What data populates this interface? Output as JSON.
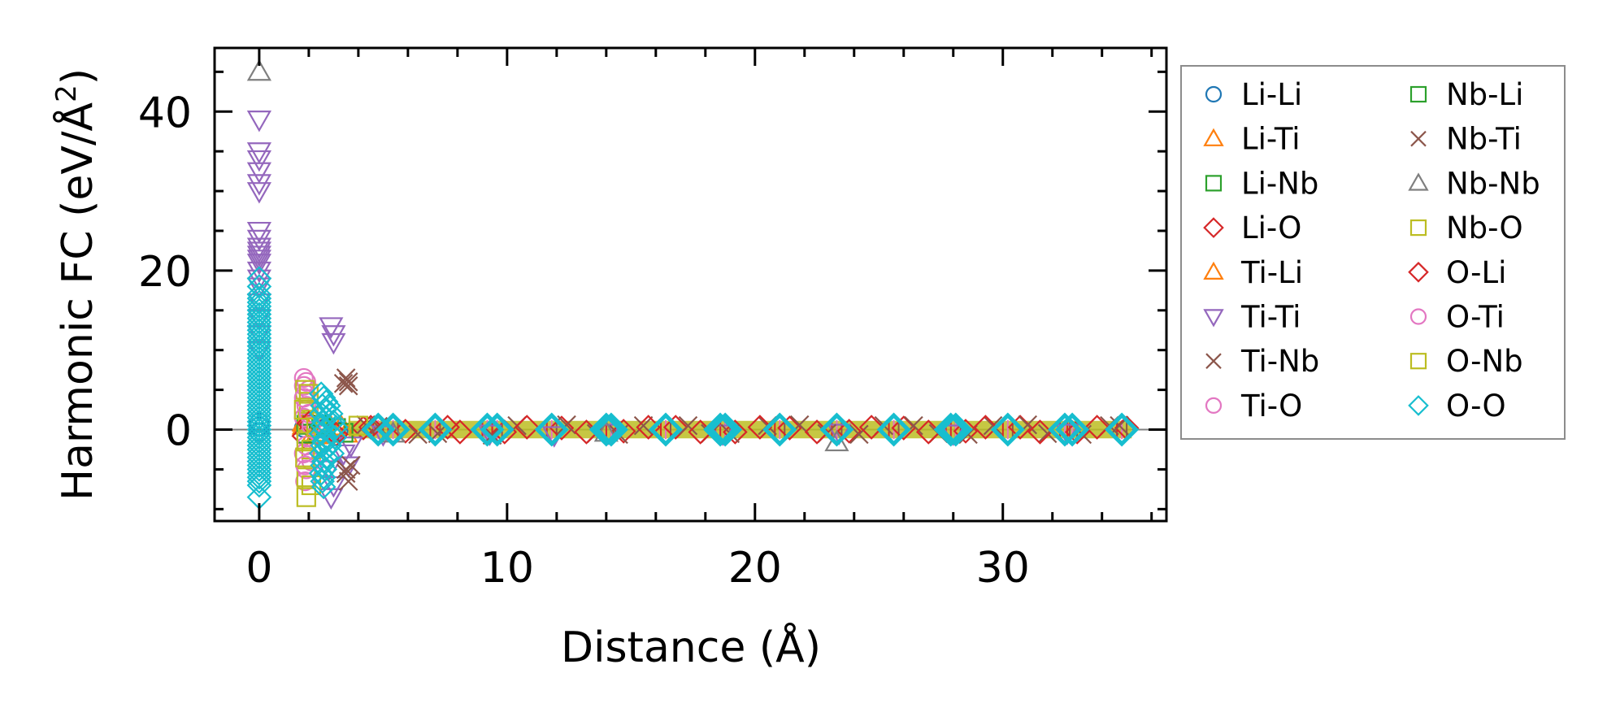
{
  "chart_data": {
    "type": "scatter",
    "xlabel": "Distance (Å)",
    "ylabel_main": "Harmonic FC (eV/Å",
    "ylabel_sup": "2",
    "ylabel_close": ")",
    "xlim": [
      -1.8,
      36.6
    ],
    "ylim": [
      -11.5,
      48
    ],
    "x_ticks": [
      0,
      10,
      20,
      30
    ],
    "x_tick_labels": [
      "0",
      "10",
      "20",
      "30"
    ],
    "x_minor_step": 2,
    "y_ticks": [
      0,
      20,
      40
    ],
    "y_tick_labels": [
      "0",
      "20",
      "40"
    ],
    "y_minor_step": 5,
    "zero_line": 0,
    "grid": false,
    "legend_placement": "outside-right",
    "legend_columns": 2,
    "shell_distances": [
      4.8,
      5.4,
      7.1,
      9.2,
      9.6,
      11.8,
      14.0,
      14.2,
      16.4,
      18.6,
      18.8,
      21.0,
      23.3,
      25.6,
      27.9,
      28.1,
      30.2,
      32.5,
      32.8,
      34.8
    ],
    "series": [
      {
        "name": "Li-Li",
        "marker": "circle",
        "color": "#1f77b4",
        "points": [
          [
            0,
            0.4
          ],
          [
            0,
            0.9
          ],
          [
            0,
            -0.3
          ],
          [
            1.8,
            0.2
          ],
          [
            2.6,
            0.1
          ],
          [
            3.2,
            -0.2
          ]
        ]
      },
      {
        "name": "Li-Ti",
        "marker": "triangle-up",
        "color": "#ff7f0e",
        "points": [
          [
            1.8,
            0.5
          ],
          [
            2.2,
            -0.4
          ],
          [
            2.9,
            0.3
          ],
          [
            3.5,
            -0.5
          ]
        ]
      },
      {
        "name": "Li-Nb",
        "marker": "square",
        "color": "#2ca02c",
        "points": [
          [
            1.9,
            0.6
          ],
          [
            2.4,
            -0.6
          ],
          [
            3.1,
            0.2
          ]
        ]
      },
      {
        "name": "Li-O",
        "marker": "diamond",
        "color": "#d62728",
        "points": [
          [
            1.8,
            -0.8
          ],
          [
            2.1,
            0.7
          ],
          [
            3.0,
            -0.3
          ],
          [
            4.2,
            0.2
          ],
          [
            5.9,
            -0.2
          ],
          [
            7.6,
            0.3
          ],
          [
            9.9,
            -0.3
          ],
          [
            12.2,
            0.2
          ],
          [
            14.7,
            -0.2
          ],
          [
            16.8,
            0.3
          ],
          [
            19.2,
            -0.3
          ],
          [
            21.4,
            0.2
          ],
          [
            23.8,
            -0.2
          ],
          [
            26.0,
            0.2
          ],
          [
            28.5,
            -0.2
          ],
          [
            30.7,
            0.3
          ],
          [
            33.0,
            -0.3
          ],
          [
            35.0,
            0.2
          ]
        ]
      },
      {
        "name": "Ti-Li",
        "marker": "triangle-up",
        "color": "#ff7f0e",
        "points": [
          [
            1.8,
            0.9
          ],
          [
            2.3,
            -0.7
          ],
          [
            3.3,
            0.4
          ]
        ]
      },
      {
        "name": "Ti-Ti",
        "marker": "triangle-down",
        "color": "#9467bd",
        "points": [
          [
            0,
            39
          ],
          [
            0,
            35
          ],
          [
            0,
            34
          ],
          [
            0,
            32.5
          ],
          [
            0,
            31
          ],
          [
            0,
            30
          ],
          [
            0,
            25
          ],
          [
            0,
            24
          ],
          [
            0,
            23
          ],
          [
            0,
            22.5
          ],
          [
            0,
            22
          ],
          [
            0,
            21.5
          ],
          [
            0,
            21
          ],
          [
            0,
            20
          ],
          [
            0,
            19
          ],
          [
            0,
            18
          ],
          [
            0,
            16
          ],
          [
            0,
            14
          ],
          [
            0,
            12
          ],
          [
            0,
            10
          ],
          [
            2.9,
            13
          ],
          [
            3.0,
            12
          ],
          [
            3.0,
            11
          ],
          [
            2.6,
            -2
          ],
          [
            2.8,
            -5
          ],
          [
            3.0,
            -7
          ],
          [
            2.9,
            -8.5
          ],
          [
            3.4,
            -3
          ],
          [
            3.6,
            -4.5
          ],
          [
            3.7,
            -2
          ],
          [
            5.0,
            -0.6
          ],
          [
            9.3,
            -0.5
          ],
          [
            11.9,
            -0.7
          ],
          [
            14.1,
            -0.4
          ],
          [
            18.7,
            -0.5
          ],
          [
            23.4,
            -0.4
          ],
          [
            28.0,
            -0.5
          ],
          [
            32.6,
            -0.4
          ]
        ]
      },
      {
        "name": "Ti-Nb",
        "marker": "x",
        "color": "#8c564b",
        "points": [
          [
            3.5,
            6.5
          ],
          [
            3.6,
            6.0
          ],
          [
            3.6,
            5.5
          ],
          [
            3.5,
            -5.5
          ],
          [
            3.6,
            -6.5
          ],
          [
            3.7,
            -4.5
          ],
          [
            4.3,
            0.6
          ],
          [
            6.4,
            -0.6
          ],
          [
            9.4,
            -0.7
          ],
          [
            12.4,
            0.6
          ],
          [
            14.5,
            -0.6
          ],
          [
            17.3,
            0.5
          ],
          [
            19.0,
            -0.5
          ],
          [
            21.8,
            0.6
          ],
          [
            24.2,
            -0.6
          ],
          [
            26.4,
            0.5
          ],
          [
            28.6,
            -0.6
          ],
          [
            31.0,
            0.6
          ],
          [
            33.2,
            -0.6
          ],
          [
            34.7,
            0.5
          ]
        ]
      },
      {
        "name": "Ti-O",
        "marker": "circle",
        "color": "#e377c2",
        "points": [
          [
            1.8,
            6.5
          ],
          [
            1.9,
            6.0
          ],
          [
            1.8,
            5.5
          ],
          [
            1.85,
            4.5
          ],
          [
            1.9,
            3.0
          ],
          [
            1.8,
            1.5
          ],
          [
            1.9,
            -1.0
          ],
          [
            1.8,
            -3.0
          ],
          [
            1.9,
            -5.0
          ],
          [
            1.85,
            -6.5
          ],
          [
            2.0,
            5.0
          ],
          [
            2.1,
            -4.0
          ]
        ]
      },
      {
        "name": "Nb-Li",
        "marker": "square",
        "color": "#2ca02c",
        "points": [
          [
            1.9,
            -0.5
          ],
          [
            2.5,
            0.6
          ],
          [
            3.4,
            -0.4
          ]
        ]
      },
      {
        "name": "Nb-Ti",
        "marker": "x",
        "color": "#8c564b",
        "points": [
          [
            3.4,
            5.8
          ],
          [
            3.5,
            -5.0
          ],
          [
            4.8,
            0.4
          ],
          [
            7.2,
            -0.5
          ],
          [
            10.4,
            0.5
          ],
          [
            13.6,
            -0.5
          ],
          [
            15.5,
            0.5
          ],
          [
            18.2,
            -0.5
          ],
          [
            20.5,
            0.5
          ],
          [
            22.9,
            -0.5
          ],
          [
            25.2,
            0.5
          ],
          [
            27.4,
            -0.5
          ],
          [
            29.6,
            0.5
          ],
          [
            31.8,
            -0.5
          ],
          [
            34.3,
            0.5
          ]
        ]
      },
      {
        "name": "Nb-Nb",
        "marker": "triangle-up",
        "color": "#7f7f7f",
        "points": [
          [
            0,
            45
          ],
          [
            23.3,
            -1.6
          ],
          [
            14.0,
            -0.4
          ],
          [
            5.4,
            -0.5
          ]
        ]
      },
      {
        "name": "Nb-O",
        "marker": "square",
        "color": "#bcbd22",
        "points": [
          [
            1.9,
            -8.5
          ],
          [
            1.85,
            5.0
          ],
          [
            1.9,
            -6.0
          ],
          [
            2.0,
            3.5
          ],
          [
            2.1,
            -2.5
          ],
          [
            1.95,
            1.0
          ]
        ]
      },
      {
        "name": "O-Li",
        "marker": "diamond",
        "color": "#d62728",
        "points": [
          [
            2.0,
            0.8
          ],
          [
            3.1,
            -0.6
          ],
          [
            4.5,
            0.3
          ],
          [
            8.1,
            -0.3
          ],
          [
            10.8,
            0.3
          ],
          [
            13.2,
            -0.3
          ],
          [
            15.7,
            0.3
          ],
          [
            17.8,
            -0.3
          ],
          [
            20.2,
            0.3
          ],
          [
            22.5,
            -0.3
          ],
          [
            24.7,
            0.3
          ],
          [
            27.0,
            -0.3
          ],
          [
            29.3,
            0.3
          ],
          [
            31.5,
            -0.3
          ],
          [
            33.8,
            0.3
          ]
        ]
      },
      {
        "name": "O-Ti",
        "marker": "circle",
        "color": "#e377c2",
        "points": [
          [
            1.8,
            4.0
          ],
          [
            1.9,
            -2.0
          ],
          [
            2.0,
            2.0
          ],
          [
            1.85,
            -4.5
          ],
          [
            2.1,
            0.5
          ]
        ]
      },
      {
        "name": "O-Nb",
        "marker": "square",
        "color": "#bcbd22",
        "points": [
          [
            1.8,
            2.5
          ],
          [
            1.9,
            -1.5
          ],
          [
            2.0,
            4.5
          ],
          [
            1.85,
            -3.5
          ],
          [
            2.1,
            -7.0
          ],
          [
            2.3,
            0.3
          ],
          [
            4.0,
            0.5
          ]
        ]
      },
      {
        "name": "O-O",
        "marker": "diamond",
        "color": "#17becf",
        "points": [
          [
            0,
            19
          ],
          [
            0,
            18
          ],
          [
            0,
            17
          ],
          [
            0,
            16.5
          ],
          [
            0,
            16
          ],
          [
            0,
            15.5
          ],
          [
            0,
            15
          ],
          [
            0,
            14.5
          ],
          [
            0,
            14
          ],
          [
            0,
            13.5
          ],
          [
            0,
            13
          ],
          [
            0,
            12.5
          ],
          [
            0,
            12
          ],
          [
            0,
            11.5
          ],
          [
            0,
            11
          ],
          [
            0,
            10.5
          ],
          [
            0,
            10
          ],
          [
            0,
            9.5
          ],
          [
            0,
            9
          ],
          [
            0,
            8.5
          ],
          [
            0,
            8
          ],
          [
            0,
            7.5
          ],
          [
            0,
            7
          ],
          [
            0,
            6.5
          ],
          [
            0,
            6
          ],
          [
            0,
            5.5
          ],
          [
            0,
            5
          ],
          [
            0,
            4.5
          ],
          [
            0,
            4
          ],
          [
            0,
            3.5
          ],
          [
            0,
            3
          ],
          [
            0,
            2.5
          ],
          [
            0,
            2
          ],
          [
            0,
            1.5
          ],
          [
            0,
            1
          ],
          [
            0,
            0.5
          ],
          [
            0,
            0
          ],
          [
            0,
            -0.5
          ],
          [
            0,
            -1
          ],
          [
            0,
            -1.5
          ],
          [
            0,
            -2
          ],
          [
            0,
            -2.5
          ],
          [
            0,
            -3
          ],
          [
            0,
            -3.5
          ],
          [
            0,
            -4
          ],
          [
            0,
            -4.5
          ],
          [
            0,
            -5
          ],
          [
            0,
            -5.5
          ],
          [
            0,
            -6
          ],
          [
            0,
            -6.5
          ],
          [
            0,
            -7
          ],
          [
            0,
            -8.5
          ],
          [
            2.5,
            4.5
          ],
          [
            2.6,
            4.0
          ],
          [
            2.7,
            3.5
          ],
          [
            2.55,
            3.0
          ],
          [
            2.65,
            2.5
          ],
          [
            2.5,
            2.0
          ],
          [
            2.7,
            1.5
          ],
          [
            2.6,
            1.0
          ],
          [
            2.55,
            0.5
          ],
          [
            2.65,
            0.0
          ],
          [
            2.5,
            -0.5
          ],
          [
            2.7,
            -1.0
          ],
          [
            2.6,
            -1.5
          ],
          [
            2.55,
            -2.0
          ],
          [
            2.65,
            -2.5
          ],
          [
            2.5,
            -3.0
          ],
          [
            2.7,
            -3.5
          ],
          [
            2.6,
            -4.0
          ],
          [
            2.55,
            -4.5
          ],
          [
            2.65,
            -5.0
          ],
          [
            2.5,
            -5.5
          ],
          [
            2.6,
            -6.0
          ],
          [
            2.55,
            -6.5
          ],
          [
            2.6,
            -7.2
          ],
          [
            2.8,
            3.0
          ],
          [
            2.9,
            2.0
          ],
          [
            2.85,
            -2.0
          ],
          [
            2.95,
            -3.0
          ],
          [
            3.0,
            1.0
          ],
          [
            3.05,
            -1.0
          ],
          [
            3.1,
            0.3
          ],
          [
            4.8,
            0
          ],
          [
            5.4,
            0
          ],
          [
            7.1,
            0
          ],
          [
            9.2,
            0
          ],
          [
            9.6,
            0
          ],
          [
            11.8,
            0
          ],
          [
            14.0,
            0
          ],
          [
            14.2,
            0
          ],
          [
            16.4,
            0
          ],
          [
            18.6,
            0
          ],
          [
            18.8,
            0
          ],
          [
            21.0,
            0
          ],
          [
            23.3,
            0
          ],
          [
            25.6,
            0
          ],
          [
            27.9,
            0
          ],
          [
            28.1,
            0
          ],
          [
            30.2,
            0
          ],
          [
            32.5,
            0
          ],
          [
            32.8,
            0
          ],
          [
            34.8,
            0
          ]
        ]
      }
    ]
  }
}
